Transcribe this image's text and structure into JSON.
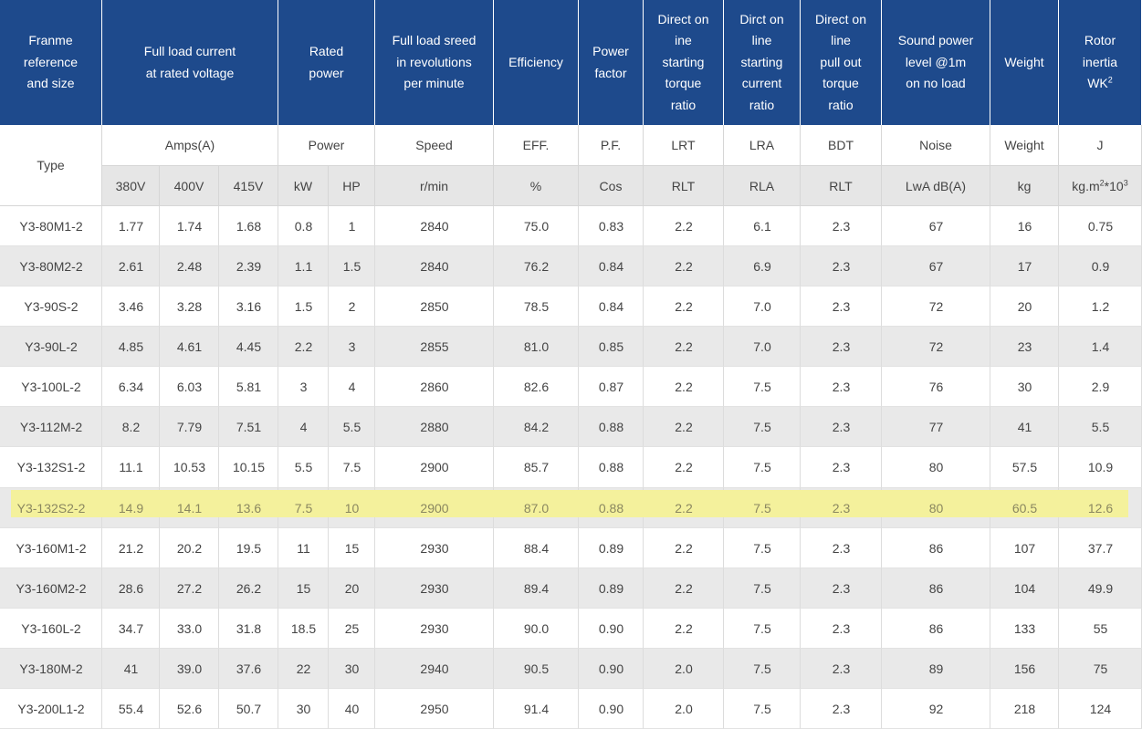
{
  "table": {
    "header": [
      {
        "lines": [
          "Franme",
          "reference",
          "and size"
        ]
      },
      {
        "lines": [
          "Full load current",
          "at rated voltage"
        ]
      },
      {
        "lines": [
          "Rated",
          "power"
        ]
      },
      {
        "lines": [
          "Full load sreed",
          "in revolutions",
          "per minute"
        ]
      },
      {
        "lines": [
          "Efficiency"
        ]
      },
      {
        "lines": [
          "Power",
          "factor"
        ]
      },
      {
        "lines": [
          "Direct on",
          "ine",
          "starting",
          "torque",
          "ratio"
        ]
      },
      {
        "lines": [
          "Dirct on",
          "line",
          "starting",
          "current",
          "ratio"
        ]
      },
      {
        "lines": [
          "Direct on",
          "line",
          "pull out",
          "torque",
          "ratio"
        ]
      },
      {
        "lines": [
          "Sound power",
          "level @1m",
          "on no load"
        ]
      },
      {
        "lines": [
          "Weight"
        ]
      },
      {
        "lines": [
          "Rotor",
          "inertia",
          [
            {
              "text": "WK"
            },
            {
              "sup": "2"
            }
          ]
        ]
      }
    ],
    "groups": [
      "Type",
      "Amps(A)",
      "Power",
      "Speed",
      "EFF.",
      "P.F.",
      "LRT",
      "LRA",
      "BDT",
      "Noise",
      "Weight",
      "J"
    ],
    "units": [
      "380V",
      "400V",
      "415V",
      "kW",
      "HP",
      "r/min",
      "%",
      "Cos",
      "RLT",
      "RLA",
      "RLT",
      "LwA dB(A)",
      "kg",
      [
        {
          "text": "kg.m"
        },
        {
          "sup": "2"
        },
        {
          "text": "*10"
        },
        {
          "sup": "3"
        }
      ]
    ],
    "highlight_row": 7,
    "rows": [
      [
        "Y3-80M1-2",
        "1.77",
        "1.74",
        "1.68",
        "0.8",
        "1",
        "2840",
        "75.0",
        "0.83",
        "2.2",
        "6.1",
        "2.3",
        "67",
        "16",
        "0.75"
      ],
      [
        "Y3-80M2-2",
        "2.61",
        "2.48",
        "2.39",
        "1.1",
        "1.5",
        "2840",
        "76.2",
        "0.84",
        "2.2",
        "6.9",
        "2.3",
        "67",
        "17",
        "0.9"
      ],
      [
        "Y3-90S-2",
        "3.46",
        "3.28",
        "3.16",
        "1.5",
        "2",
        "2850",
        "78.5",
        "0.84",
        "2.2",
        "7.0",
        "2.3",
        "72",
        "20",
        "1.2"
      ],
      [
        "Y3-90L-2",
        "4.85",
        "4.61",
        "4.45",
        "2.2",
        "3",
        "2855",
        "81.0",
        "0.85",
        "2.2",
        "7.0",
        "2.3",
        "72",
        "23",
        "1.4"
      ],
      [
        "Y3-100L-2",
        "6.34",
        "6.03",
        "5.81",
        "3",
        "4",
        "2860",
        "82.6",
        "0.87",
        "2.2",
        "7.5",
        "2.3",
        "76",
        "30",
        "2.9"
      ],
      [
        "Y3-112M-2",
        "8.2",
        "7.79",
        "7.51",
        "4",
        "5.5",
        "2880",
        "84.2",
        "0.88",
        "2.2",
        "7.5",
        "2.3",
        "77",
        "41",
        "5.5"
      ],
      [
        "Y3-132S1-2",
        "11.1",
        "10.53",
        "10.15",
        "5.5",
        "7.5",
        "2900",
        "85.7",
        "0.88",
        "2.2",
        "7.5",
        "2.3",
        "80",
        "57.5",
        "10.9"
      ],
      [
        "Y3-132S2-2",
        "14.9",
        "14.1",
        "13.6",
        "7.5",
        "10",
        "2900",
        "87.0",
        "0.88",
        "2.2",
        "7.5",
        "2.3",
        "80",
        "60.5",
        "12.6"
      ],
      [
        "Y3-160M1-2",
        "21.2",
        "20.2",
        "19.5",
        "11",
        "15",
        "2930",
        "88.4",
        "0.89",
        "2.2",
        "7.5",
        "2.3",
        "86",
        "107",
        "37.7"
      ],
      [
        "Y3-160M2-2",
        "28.6",
        "27.2",
        "26.2",
        "15",
        "20",
        "2930",
        "89.4",
        "0.89",
        "2.2",
        "7.5",
        "2.3",
        "86",
        "104",
        "49.9"
      ],
      [
        "Y3-160L-2",
        "34.7",
        "33.0",
        "31.8",
        "18.5",
        "25",
        "2930",
        "90.0",
        "0.90",
        "2.2",
        "7.5",
        "2.3",
        "86",
        "133",
        "55"
      ],
      [
        "Y3-180M-2",
        "41",
        "39.0",
        "37.6",
        "22",
        "30",
        "2940",
        "90.5",
        "0.90",
        "2.0",
        "7.5",
        "2.3",
        "89",
        "156",
        "75"
      ],
      [
        "Y3-200L1-2",
        "55.4",
        "52.6",
        "50.7",
        "30",
        "40",
        "2950",
        "91.4",
        "0.90",
        "2.0",
        "7.5",
        "2.3",
        "92",
        "218",
        "124"
      ]
    ]
  }
}
